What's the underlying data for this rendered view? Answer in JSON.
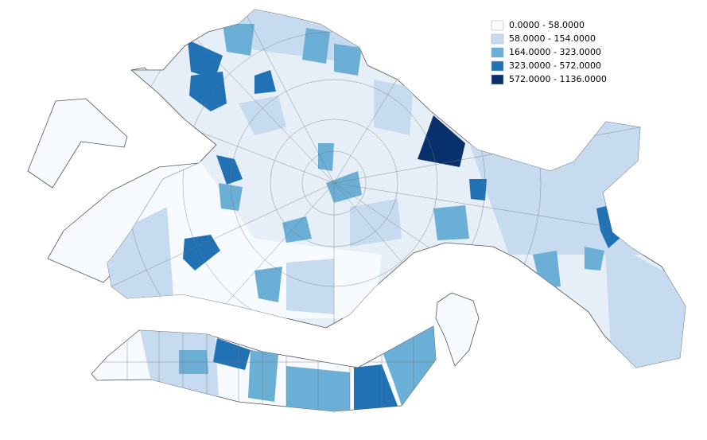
{
  "legend": [
    {
      "label": "0.0000 - 58.0000",
      "color": "#f7fbff"
    },
    {
      "label": "58.0000 - 154.0000",
      "color": "#c6dbef"
    },
    {
      "label": "164.0000 - 323.0000",
      "color": "#6baed6"
    },
    {
      "label": "323.0000 - 572.0000",
      "color": "#2171b5"
    },
    {
      "label": "572.0000 - 1136.0000",
      "color": "#08306b"
    }
  ]
}
